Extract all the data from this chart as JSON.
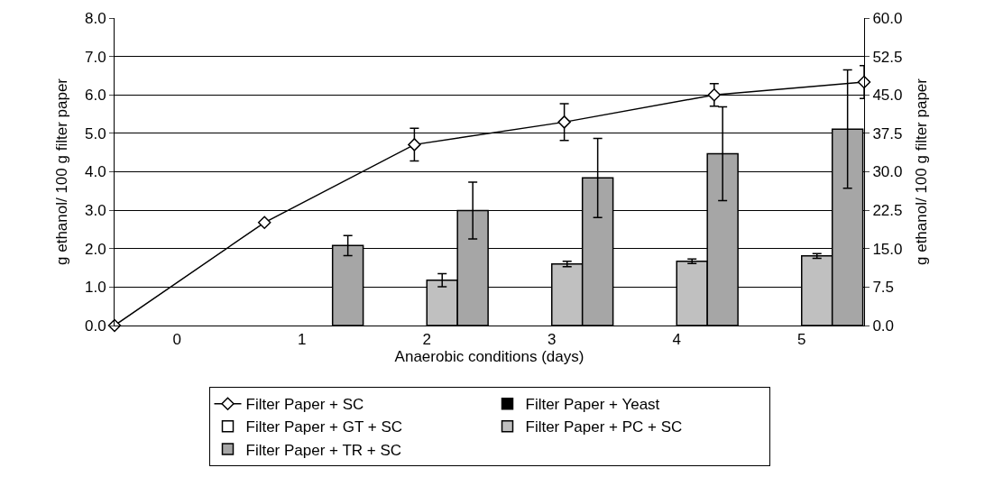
{
  "chart_data": {
    "type": "bar",
    "xlabel": "Anaerobic conditions (days)",
    "ylabel": "g ethanol/ 100 g filter paper",
    "y2label": "g ethanol/ 100 g filter paper",
    "x": [
      1,
      2,
      3,
      4,
      5
    ],
    "xlim": [
      -0.5,
      5.5
    ],
    "xticks": [
      0,
      1,
      2,
      3,
      4,
      5
    ],
    "ylim": [
      0,
      8
    ],
    "yticks": [
      {
        "value": 0,
        "label": "0.0"
      },
      {
        "value": 1,
        "label": "1.0"
      },
      {
        "value": 2,
        "label": "2.0"
      },
      {
        "value": 3,
        "label": "3.0"
      },
      {
        "value": 4,
        "label": "4.0"
      },
      {
        "value": 5,
        "label": "5.0"
      },
      {
        "value": 6,
        "label": "6.0"
      },
      {
        "value": 7,
        "label": "7.0"
      },
      {
        "value": 8,
        "label": "8.0"
      }
    ],
    "y2lim": [
      0,
      60
    ],
    "y2ticks": [
      {
        "value": 0,
        "label": "0.0"
      },
      7.5,
      {
        "value": 15,
        "label": "15.0"
      },
      22.5,
      {
        "value": 30,
        "label": "30.0"
      },
      37.5,
      {
        "value": 45,
        "label": "45.0"
      },
      52.5,
      {
        "value": 60,
        "label": "60.0"
      }
    ],
    "grid": "y",
    "legend": "bottom",
    "series": [
      {
        "name": "Filter Paper + SC",
        "type": "line",
        "axis": "y2",
        "color": "#000000",
        "marker": "diamond",
        "x": [
          -0.5,
          0.7,
          1.9,
          3.1,
          4.3,
          5.5
        ],
        "values": [
          0,
          20.1,
          35.3,
          39.7,
          45.0,
          47.5
        ],
        "errors": [
          null,
          null,
          3.2,
          3.6,
          2.2,
          3.2
        ]
      },
      {
        "name": "Filter Paper + Yeast",
        "color": "#000000",
        "values": [
          null,
          null,
          null,
          null,
          null
        ]
      },
      {
        "name": "Filter Paper + GT + SC",
        "color": "#ffffff",
        "values": [
          null,
          null,
          null,
          null,
          null
        ]
      },
      {
        "name": "Filter Paper + PC + SC",
        "color": "#c0c0c0",
        "values": [
          null,
          1.18,
          1.6,
          1.67,
          1.81
        ],
        "errors": [
          null,
          0.17,
          0.07,
          0.06,
          0.06
        ]
      },
      {
        "name": "Filter Paper + TR + SC",
        "color": "#a6a6a6",
        "values": [
          2.08,
          2.99,
          3.84,
          4.47,
          5.11
        ],
        "errors": [
          0.26,
          0.74,
          1.03,
          1.22,
          1.54
        ]
      }
    ]
  }
}
